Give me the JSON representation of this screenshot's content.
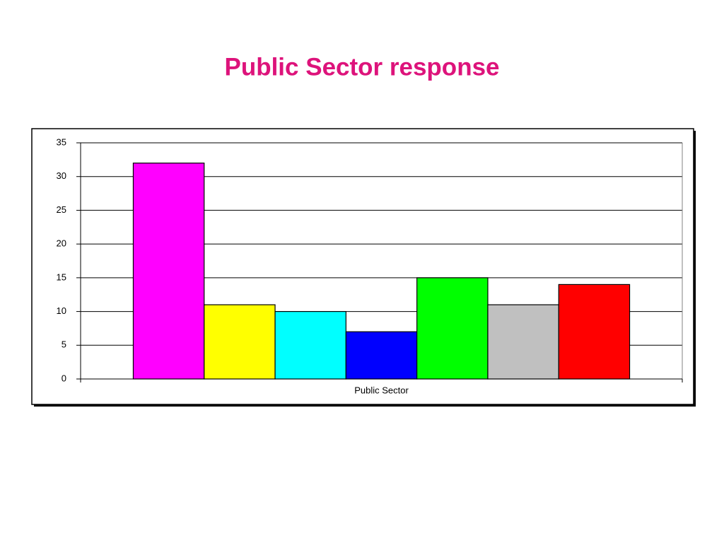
{
  "chart_data": {
    "type": "bar",
    "title": "Public Sector response",
    "categories": [
      "Public Sector"
    ],
    "series": [
      {
        "color": "#ff00ff",
        "values": [
          32
        ]
      },
      {
        "color": "#ffff00",
        "values": [
          11
        ]
      },
      {
        "color": "#00ffff",
        "values": [
          10
        ]
      },
      {
        "color": "#0000ff",
        "values": [
          7
        ]
      },
      {
        "color": "#00ff00",
        "values": [
          15
        ]
      },
      {
        "color": "#c0c0c0",
        "values": [
          11
        ]
      },
      {
        "color": "#ff0000",
        "values": [
          14
        ]
      }
    ],
    "ylim": [
      0,
      35
    ],
    "yticks": [
      0,
      5,
      10,
      15,
      20,
      25,
      30,
      35
    ],
    "grid": true
  }
}
